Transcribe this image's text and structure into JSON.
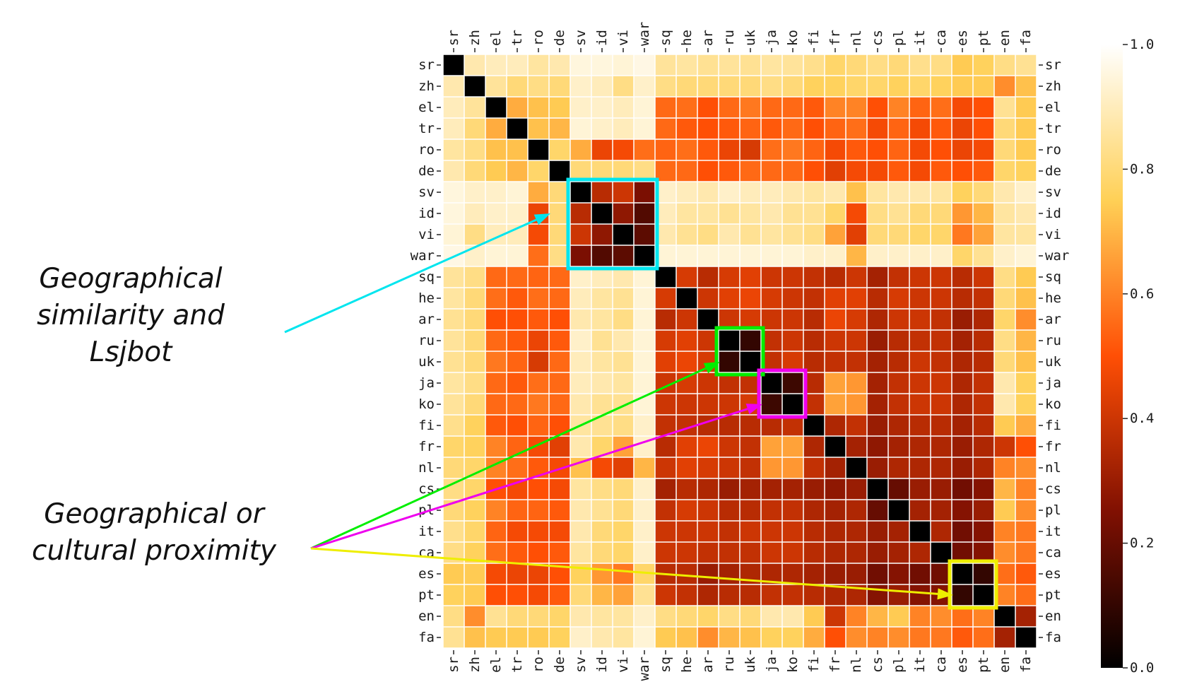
{
  "chart_data": {
    "type": "heatmap",
    "title": "",
    "labels": [
      "sr",
      "zh",
      "el",
      "tr",
      "ro",
      "de",
      "sv",
      "id",
      "vi",
      "war",
      "sq",
      "he",
      "ar",
      "ru",
      "uk",
      "ja",
      "ko",
      "fi",
      "fr",
      "nl",
      "cs",
      "pl",
      "it",
      "ca",
      "es",
      "pt",
      "en",
      "fa"
    ],
    "values": [
      [
        0.0,
        0.88,
        0.9,
        0.9,
        0.86,
        0.88,
        0.95,
        0.95,
        0.94,
        0.96,
        0.85,
        0.86,
        0.84,
        0.85,
        0.84,
        0.86,
        0.85,
        0.83,
        0.78,
        0.8,
        0.82,
        0.8,
        0.83,
        0.82,
        0.74,
        0.76,
        0.82,
        0.84
      ],
      [
        0.88,
        0.0,
        0.85,
        0.8,
        0.82,
        0.8,
        0.92,
        0.9,
        0.82,
        0.92,
        0.82,
        0.8,
        0.8,
        0.8,
        0.8,
        0.82,
        0.8,
        0.76,
        0.76,
        0.78,
        0.78,
        0.76,
        0.78,
        0.76,
        0.74,
        0.74,
        0.62,
        0.72
      ],
      [
        0.9,
        0.85,
        0.0,
        0.68,
        0.72,
        0.74,
        0.92,
        0.92,
        0.9,
        0.94,
        0.55,
        0.56,
        0.5,
        0.55,
        0.58,
        0.55,
        0.55,
        0.52,
        0.6,
        0.6,
        0.5,
        0.6,
        0.54,
        0.56,
        0.48,
        0.5,
        0.84,
        0.74
      ],
      [
        0.9,
        0.8,
        0.68,
        0.0,
        0.72,
        0.7,
        0.94,
        0.92,
        0.9,
        0.94,
        0.55,
        0.52,
        0.5,
        0.52,
        0.54,
        0.52,
        0.55,
        0.5,
        0.54,
        0.56,
        0.48,
        0.54,
        0.48,
        0.52,
        0.46,
        0.5,
        0.8,
        0.74
      ],
      [
        0.86,
        0.82,
        0.72,
        0.72,
        0.0,
        0.78,
        0.68,
        0.46,
        0.48,
        0.56,
        0.54,
        0.56,
        0.52,
        0.46,
        0.42,
        0.56,
        0.58,
        0.54,
        0.48,
        0.52,
        0.5,
        0.54,
        0.48,
        0.5,
        0.46,
        0.48,
        0.8,
        0.74
      ],
      [
        0.88,
        0.8,
        0.74,
        0.7,
        0.78,
        0.0,
        0.8,
        0.8,
        0.8,
        0.82,
        0.55,
        0.55,
        0.5,
        0.52,
        0.55,
        0.55,
        0.55,
        0.5,
        0.44,
        0.48,
        0.48,
        0.52,
        0.48,
        0.52,
        0.5,
        0.52,
        0.78,
        0.76
      ],
      [
        0.95,
        0.92,
        0.92,
        0.94,
        0.68,
        0.8,
        0.0,
        0.36,
        0.4,
        0.24,
        0.92,
        0.9,
        0.88,
        0.92,
        0.9,
        0.9,
        0.88,
        0.86,
        0.88,
        0.72,
        0.86,
        0.88,
        0.88,
        0.86,
        0.76,
        0.8,
        0.88,
        0.92
      ],
      [
        0.95,
        0.9,
        0.92,
        0.92,
        0.46,
        0.8,
        0.36,
        0.0,
        0.28,
        0.16,
        0.9,
        0.86,
        0.86,
        0.84,
        0.86,
        0.88,
        0.84,
        0.84,
        0.78,
        0.48,
        0.82,
        0.84,
        0.8,
        0.8,
        0.64,
        0.7,
        0.86,
        0.88
      ],
      [
        0.94,
        0.82,
        0.9,
        0.9,
        0.48,
        0.8,
        0.4,
        0.28,
        0.0,
        0.18,
        0.88,
        0.84,
        0.82,
        0.88,
        0.84,
        0.86,
        0.84,
        0.82,
        0.66,
        0.44,
        0.8,
        0.8,
        0.78,
        0.78,
        0.58,
        0.66,
        0.86,
        0.86
      ],
      [
        0.96,
        0.92,
        0.94,
        0.94,
        0.56,
        0.82,
        0.24,
        0.16,
        0.18,
        0.0,
        0.94,
        0.94,
        0.94,
        0.94,
        0.94,
        0.94,
        0.94,
        0.92,
        0.92,
        0.7,
        0.92,
        0.92,
        0.92,
        0.92,
        0.78,
        0.84,
        0.92,
        0.94
      ],
      [
        0.85,
        0.82,
        0.55,
        0.55,
        0.54,
        0.55,
        0.92,
        0.9,
        0.88,
        0.94,
        0.0,
        0.42,
        0.36,
        0.42,
        0.44,
        0.4,
        0.4,
        0.38,
        0.36,
        0.4,
        0.32,
        0.38,
        0.4,
        0.4,
        0.36,
        0.4,
        0.82,
        0.74
      ],
      [
        0.86,
        0.8,
        0.56,
        0.52,
        0.56,
        0.55,
        0.9,
        0.86,
        0.84,
        0.94,
        0.42,
        0.0,
        0.4,
        0.44,
        0.46,
        0.42,
        0.4,
        0.38,
        0.44,
        0.44,
        0.36,
        0.42,
        0.4,
        0.4,
        0.36,
        0.38,
        0.8,
        0.72
      ],
      [
        0.84,
        0.8,
        0.5,
        0.5,
        0.52,
        0.5,
        0.88,
        0.86,
        0.82,
        0.94,
        0.36,
        0.4,
        0.0,
        0.4,
        0.42,
        0.4,
        0.4,
        0.36,
        0.46,
        0.42,
        0.34,
        0.4,
        0.4,
        0.38,
        0.3,
        0.34,
        0.78,
        0.62
      ],
      [
        0.85,
        0.8,
        0.55,
        0.52,
        0.46,
        0.52,
        0.92,
        0.84,
        0.88,
        0.94,
        0.42,
        0.44,
        0.4,
        0.0,
        0.1,
        0.38,
        0.4,
        0.36,
        0.4,
        0.4,
        0.3,
        0.36,
        0.38,
        0.38,
        0.32,
        0.36,
        0.82,
        0.7
      ],
      [
        0.84,
        0.8,
        0.58,
        0.54,
        0.42,
        0.55,
        0.9,
        0.86,
        0.84,
        0.94,
        0.44,
        0.46,
        0.42,
        0.1,
        0.0,
        0.38,
        0.42,
        0.36,
        0.38,
        0.38,
        0.32,
        0.36,
        0.4,
        0.38,
        0.34,
        0.36,
        0.8,
        0.72
      ],
      [
        0.86,
        0.82,
        0.55,
        0.52,
        0.56,
        0.55,
        0.9,
        0.88,
        0.86,
        0.94,
        0.4,
        0.42,
        0.4,
        0.38,
        0.38,
        0.0,
        0.12,
        0.36,
        0.66,
        0.64,
        0.32,
        0.38,
        0.4,
        0.4,
        0.34,
        0.38,
        0.88,
        0.76
      ],
      [
        0.85,
        0.8,
        0.55,
        0.55,
        0.58,
        0.55,
        0.88,
        0.84,
        0.84,
        0.94,
        0.4,
        0.4,
        0.4,
        0.4,
        0.42,
        0.12,
        0.0,
        0.38,
        0.66,
        0.64,
        0.32,
        0.38,
        0.4,
        0.4,
        0.34,
        0.38,
        0.88,
        0.76
      ],
      [
        0.83,
        0.76,
        0.52,
        0.5,
        0.54,
        0.5,
        0.86,
        0.84,
        0.82,
        0.92,
        0.38,
        0.38,
        0.36,
        0.36,
        0.36,
        0.36,
        0.38,
        0.0,
        0.34,
        0.38,
        0.3,
        0.34,
        0.36,
        0.36,
        0.32,
        0.36,
        0.74,
        0.68
      ],
      [
        0.78,
        0.76,
        0.6,
        0.54,
        0.48,
        0.44,
        0.88,
        0.78,
        0.66,
        0.92,
        0.36,
        0.44,
        0.46,
        0.4,
        0.38,
        0.66,
        0.66,
        0.34,
        0.0,
        0.32,
        0.28,
        0.32,
        0.34,
        0.34,
        0.3,
        0.34,
        0.4,
        0.5
      ],
      [
        0.8,
        0.78,
        0.6,
        0.56,
        0.52,
        0.48,
        0.72,
        0.48,
        0.44,
        0.7,
        0.4,
        0.44,
        0.42,
        0.4,
        0.38,
        0.64,
        0.64,
        0.38,
        0.32,
        0.0,
        0.3,
        0.34,
        0.34,
        0.34,
        0.3,
        0.34,
        0.6,
        0.62
      ],
      [
        0.82,
        0.78,
        0.5,
        0.48,
        0.5,
        0.48,
        0.86,
        0.82,
        0.8,
        0.92,
        0.32,
        0.36,
        0.34,
        0.3,
        0.32,
        0.32,
        0.32,
        0.3,
        0.28,
        0.3,
        0.0,
        0.2,
        0.3,
        0.3,
        0.22,
        0.26,
        0.7,
        0.6
      ],
      [
        0.8,
        0.76,
        0.6,
        0.54,
        0.54,
        0.52,
        0.88,
        0.84,
        0.8,
        0.92,
        0.38,
        0.42,
        0.4,
        0.36,
        0.36,
        0.38,
        0.38,
        0.34,
        0.32,
        0.34,
        0.2,
        0.0,
        0.32,
        0.32,
        0.26,
        0.3,
        0.74,
        0.62
      ],
      [
        0.83,
        0.78,
        0.54,
        0.48,
        0.48,
        0.48,
        0.88,
        0.8,
        0.78,
        0.92,
        0.4,
        0.4,
        0.4,
        0.38,
        0.4,
        0.4,
        0.4,
        0.36,
        0.34,
        0.34,
        0.3,
        0.32,
        0.0,
        0.34,
        0.22,
        0.26,
        0.6,
        0.58
      ],
      [
        0.82,
        0.76,
        0.56,
        0.52,
        0.5,
        0.52,
        0.86,
        0.8,
        0.78,
        0.92,
        0.4,
        0.4,
        0.38,
        0.38,
        0.38,
        0.4,
        0.4,
        0.36,
        0.34,
        0.34,
        0.3,
        0.32,
        0.34,
        0.0,
        0.22,
        0.26,
        0.62,
        0.58
      ],
      [
        0.74,
        0.74,
        0.48,
        0.46,
        0.46,
        0.5,
        0.76,
        0.64,
        0.58,
        0.78,
        0.36,
        0.36,
        0.3,
        0.32,
        0.34,
        0.34,
        0.34,
        0.32,
        0.3,
        0.3,
        0.22,
        0.26,
        0.22,
        0.22,
        0.0,
        0.1,
        0.56,
        0.52
      ],
      [
        0.76,
        0.74,
        0.5,
        0.5,
        0.48,
        0.52,
        0.8,
        0.7,
        0.66,
        0.84,
        0.4,
        0.38,
        0.34,
        0.36,
        0.36,
        0.38,
        0.38,
        0.36,
        0.34,
        0.34,
        0.26,
        0.3,
        0.26,
        0.26,
        0.1,
        0.0,
        0.6,
        0.56
      ],
      [
        0.82,
        0.62,
        0.84,
        0.8,
        0.8,
        0.78,
        0.88,
        0.86,
        0.86,
        0.92,
        0.82,
        0.8,
        0.78,
        0.82,
        0.8,
        0.88,
        0.88,
        0.74,
        0.4,
        0.6,
        0.7,
        0.74,
        0.6,
        0.62,
        0.56,
        0.6,
        0.0,
        0.32
      ],
      [
        0.84,
        0.72,
        0.74,
        0.74,
        0.74,
        0.76,
        0.92,
        0.88,
        0.86,
        0.94,
        0.74,
        0.72,
        0.62,
        0.7,
        0.72,
        0.76,
        0.76,
        0.68,
        0.5,
        0.62,
        0.6,
        0.62,
        0.58,
        0.58,
        0.52,
        0.56,
        0.32,
        0.0
      ]
    ],
    "colorbar": {
      "min": 0.0,
      "max": 1.0,
      "ticks": [
        "0.0",
        "0.2",
        "0.4",
        "0.6",
        "0.8",
        "1.0"
      ],
      "colormap": "afmhot"
    },
    "highlights": [
      {
        "rows": [
          6,
          9
        ],
        "color": "#00e5ee"
      },
      {
        "rows": [
          13,
          14
        ],
        "color": "#00ee00"
      },
      {
        "rows": [
          15,
          16
        ],
        "color": "#ee00ee"
      },
      {
        "rows": [
          24,
          25
        ],
        "color": "#eeee00"
      }
    ],
    "annotations": [
      {
        "lines": [
          "Geographical",
          "similarity and",
          "Lsjbot"
        ],
        "color": "#00e5ee",
        "targets": [
          [
            7,
            5
          ]
        ]
      },
      {
        "lines": [
          "Geographical or",
          "cultural proximity"
        ],
        "targets": [
          [
            14,
            13
          ],
          [
            16,
            15
          ],
          [
            25,
            24
          ]
        ],
        "colors": [
          "#00ee00",
          "#ee00ee",
          "#eeee00"
        ]
      }
    ]
  }
}
